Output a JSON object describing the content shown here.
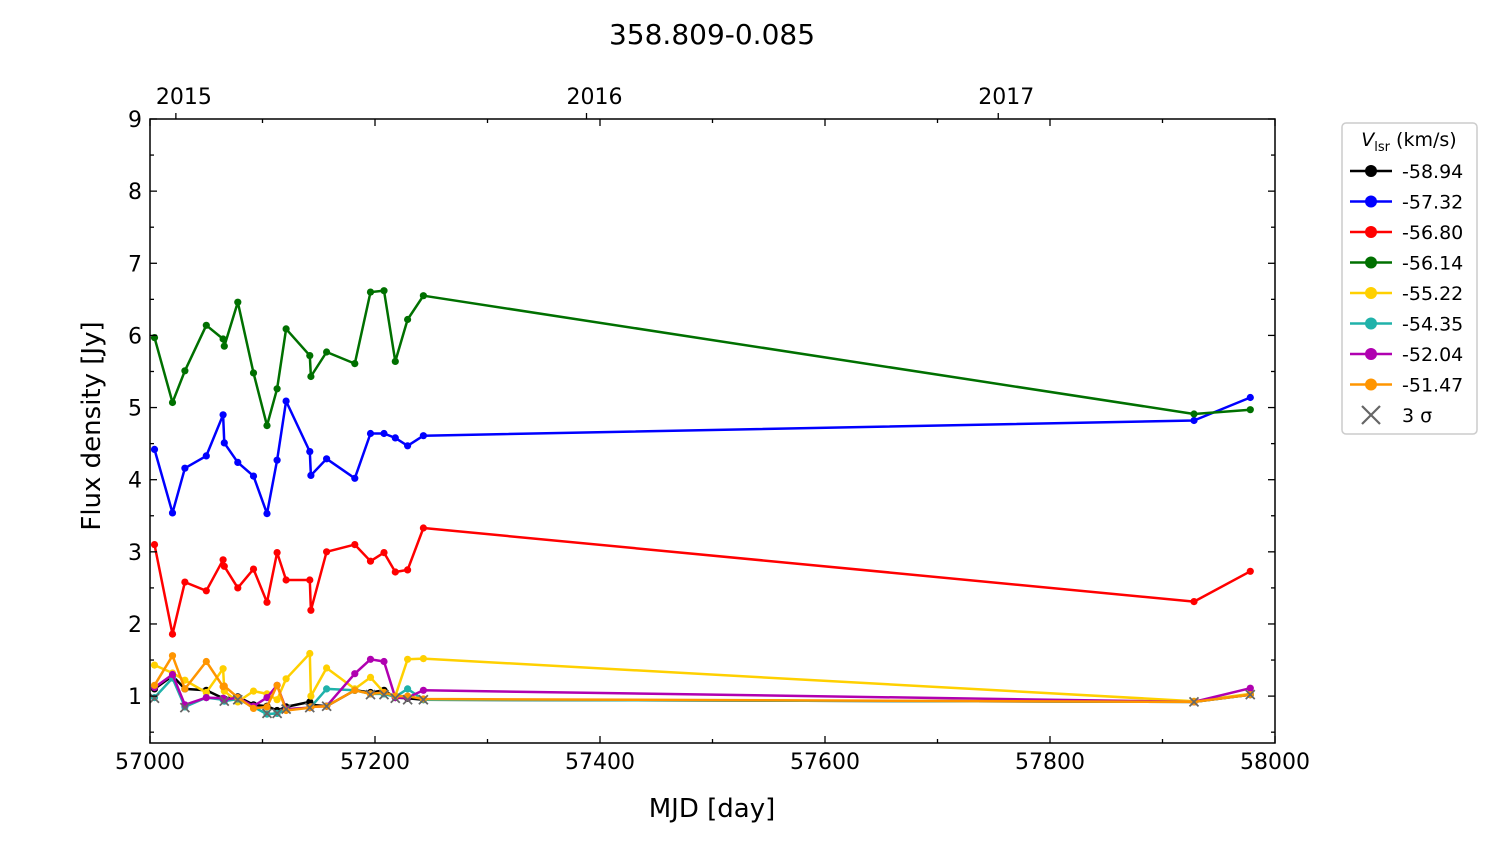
{
  "chart_data": {
    "type": "line",
    "title": "358.809-0.085",
    "xlabel": "MJD [day]",
    "ylabel": "Flux density [Jy]",
    "xlim": [
      57000,
      58000
    ],
    "ylim": [
      0.35,
      9
    ],
    "xticks": [
      57000,
      57200,
      57400,
      57600,
      57800,
      58000
    ],
    "yticks": [
      1,
      2,
      3,
      4,
      5,
      6,
      7,
      8,
      9
    ],
    "top_axis": {
      "ticks": [
        {
          "label": "2015",
          "mjd": 57023
        },
        {
          "label": "2016",
          "mjd": 57388
        },
        {
          "label": "2017",
          "mjd": 57754
        }
      ]
    },
    "grid": false,
    "legend": {
      "placement": "outside-right",
      "title_symbol": "V",
      "title_subscript": "lsr",
      "title_rest": " (km/s)",
      "sigma_label": "3 σ"
    },
    "series": [
      {
        "name": "-58.94",
        "color": "#000000",
        "x": [
          57004,
          57020,
          57031,
          57050,
          57065,
          57066,
          57078,
          57092,
          57104,
          57113,
          57121,
          57142,
          57143,
          57157,
          57182,
          57196,
          57208,
          57218,
          57229,
          57243,
          57928,
          57978
        ],
        "y": [
          1.1,
          1.28,
          1.1,
          1.08,
          0.97,
          0.96,
          0.99,
          0.88,
          0.86,
          0.8,
          0.85,
          0.92,
          0.88,
          0.86,
          1.08,
          1.05,
          1.08,
          0.98,
          0.97,
          0.95,
          0.92,
          1.02
        ]
      },
      {
        "name": "-57.32",
        "color": "#0000ff",
        "x": [
          57004,
          57020,
          57031,
          57050,
          57065,
          57066,
          57078,
          57092,
          57104,
          57113,
          57121,
          57142,
          57143,
          57157,
          57182,
          57196,
          57208,
          57218,
          57229,
          57243,
          57928,
          57978
        ],
        "y": [
          4.42,
          3.54,
          4.16,
          4.33,
          4.9,
          4.51,
          4.24,
          4.05,
          3.53,
          4.27,
          5.09,
          4.39,
          4.06,
          4.29,
          4.02,
          4.64,
          4.64,
          4.58,
          4.47,
          4.61,
          4.82,
          5.14
        ]
      },
      {
        "name": "-56.80",
        "color": "#ff0000",
        "x": [
          57004,
          57020,
          57031,
          57050,
          57065,
          57066,
          57078,
          57092,
          57104,
          57113,
          57121,
          57142,
          57143,
          57157,
          57182,
          57196,
          57208,
          57218,
          57229,
          57243,
          57928,
          57978
        ],
        "y": [
          3.1,
          1.86,
          2.58,
          2.46,
          2.89,
          2.8,
          2.5,
          2.76,
          2.3,
          2.99,
          2.61,
          2.61,
          2.19,
          3.0,
          3.1,
          2.87,
          2.99,
          2.72,
          2.75,
          3.33,
          2.31,
          2.73
        ]
      },
      {
        "name": "-56.14",
        "color": "#007000",
        "x": [
          57004,
          57020,
          57031,
          57050,
          57065,
          57066,
          57078,
          57092,
          57104,
          57113,
          57121,
          57142,
          57143,
          57157,
          57182,
          57196,
          57208,
          57218,
          57229,
          57243,
          57928,
          57978
        ],
        "y": [
          5.97,
          5.07,
          5.51,
          6.14,
          5.95,
          5.85,
          6.46,
          5.48,
          4.75,
          5.26,
          6.09,
          5.72,
          5.43,
          5.77,
          5.61,
          6.6,
          6.62,
          5.64,
          6.22,
          6.55,
          4.91,
          4.97
        ]
      },
      {
        "name": "-55.22",
        "color": "#ffd000",
        "x": [
          57004,
          57020,
          57031,
          57050,
          57065,
          57066,
          57078,
          57092,
          57104,
          57113,
          57121,
          57142,
          57143,
          57157,
          57182,
          57196,
          57208,
          57218,
          57229,
          57243,
          57928,
          57978
        ],
        "y": [
          1.43,
          1.32,
          1.22,
          1.05,
          1.38,
          1.07,
          0.92,
          1.07,
          1.03,
          0.95,
          1.24,
          1.59,
          1.0,
          1.39,
          1.1,
          1.26,
          1.05,
          1.0,
          1.51,
          1.52,
          0.93,
          1.03
        ]
      },
      {
        "name": "-54.35",
        "color": "#20b2aa",
        "x": [
          57004,
          57020,
          57031,
          57050,
          57065,
          57066,
          57078,
          57092,
          57104,
          57113,
          57121,
          57142,
          57143,
          57157,
          57182,
          57196,
          57208,
          57218,
          57229,
          57243,
          57928,
          57978
        ],
        "y": [
          0.98,
          1.25,
          0.85,
          0.98,
          0.95,
          0.93,
          0.96,
          0.85,
          0.75,
          0.76,
          0.82,
          0.84,
          0.85,
          1.1,
          1.08,
          1.03,
          1.03,
          0.99,
          1.1,
          0.95,
          0.92,
          1.02
        ]
      },
      {
        "name": "-52.04",
        "color": "#b000b0",
        "x": [
          57004,
          57020,
          57031,
          57050,
          57065,
          57066,
          57078,
          57092,
          57104,
          57113,
          57121,
          57142,
          57143,
          57157,
          57182,
          57196,
          57208,
          57218,
          57229,
          57243,
          57928,
          57978
        ],
        "y": [
          1.12,
          1.3,
          0.88,
          0.98,
          0.97,
          0.95,
          0.98,
          0.86,
          0.98,
          1.15,
          0.82,
          0.84,
          0.85,
          0.86,
          1.31,
          1.51,
          1.48,
          0.98,
          0.98,
          1.08,
          0.92,
          1.11
        ]
      },
      {
        "name": "-51.47",
        "color": "#ff9500",
        "x": [
          57004,
          57020,
          57031,
          57050,
          57065,
          57066,
          57078,
          57092,
          57104,
          57113,
          57121,
          57142,
          57143,
          57157,
          57182,
          57196,
          57208,
          57218,
          57229,
          57243,
          57928,
          57978
        ],
        "y": [
          1.15,
          1.56,
          1.1,
          1.48,
          1.13,
          1.14,
          0.98,
          0.83,
          0.85,
          1.15,
          0.8,
          0.84,
          0.85,
          0.86,
          1.08,
          1.03,
          1.05,
          1.0,
          1.0,
          0.96,
          0.92,
          1.02
        ]
      }
    ],
    "sigma3": {
      "color": "#666666",
      "x": [
        57004,
        57031,
        57066,
        57078,
        57104,
        57113,
        57121,
        57142,
        57157,
        57196,
        57208,
        57218,
        57229,
        57243,
        57928,
        57978
      ],
      "y": [
        0.97,
        0.84,
        0.93,
        0.95,
        0.76,
        0.76,
        0.82,
        0.84,
        0.86,
        1.02,
        1.02,
        0.97,
        0.95,
        0.95,
        0.92,
        1.02
      ]
    }
  }
}
